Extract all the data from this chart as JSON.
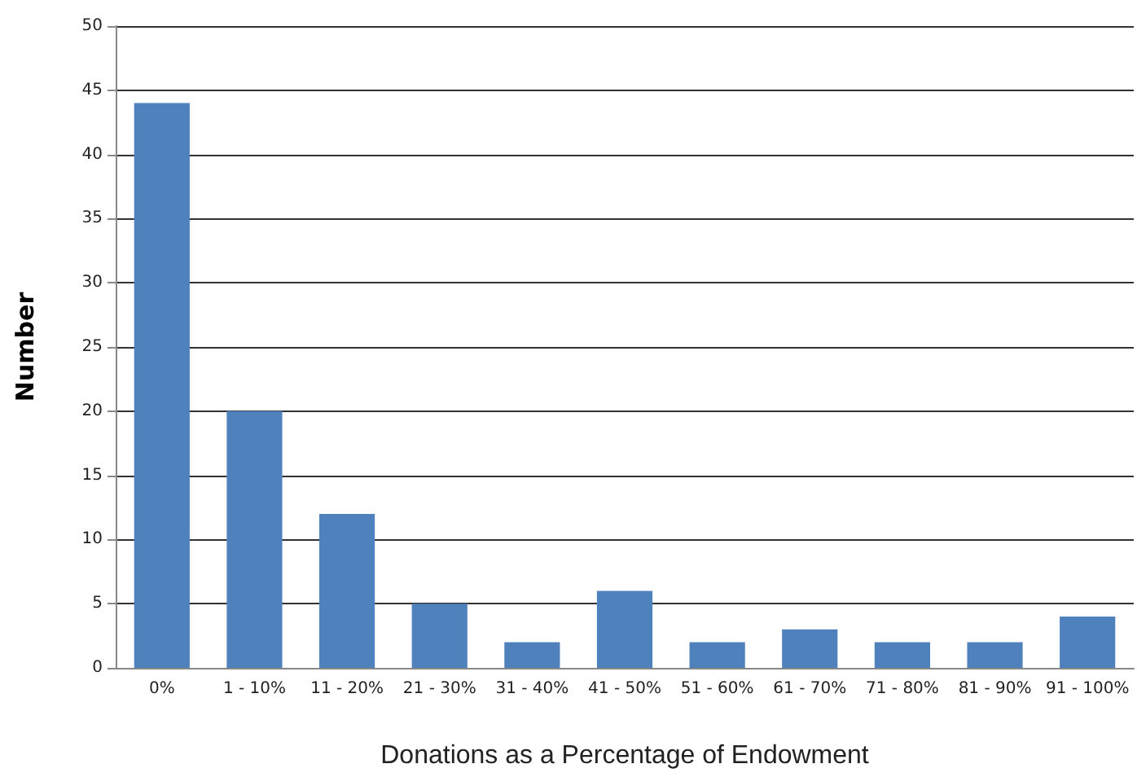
{
  "chart_data": {
    "type": "bar",
    "xlabel": "Donations as a Percentage of Endowment",
    "ylabel": "Number",
    "categories": [
      "0%",
      "1 - 10%",
      "11 - 20%",
      "21 - 30%",
      "31 - 40%",
      "41 - 50%",
      "51 - 60%",
      "61 - 70%",
      "71 - 80%",
      "81 - 90%",
      "91 - 100%"
    ],
    "values": [
      44,
      20,
      12,
      5,
      2,
      6,
      2,
      3,
      2,
      2,
      4
    ],
    "color": "#4f81bd",
    "ylim": [
      0,
      50
    ],
    "yticks": [
      0,
      5,
      10,
      15,
      20,
      25,
      30,
      35,
      40,
      45,
      50
    ],
    "grid": "y"
  }
}
